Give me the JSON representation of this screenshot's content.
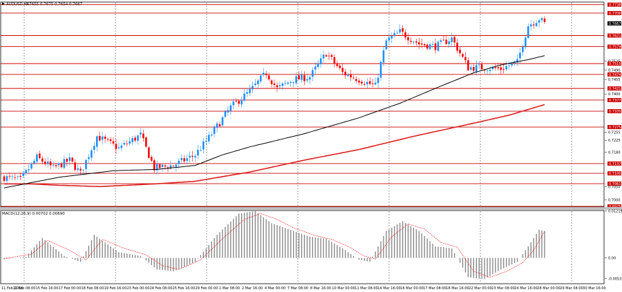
{
  "header": {
    "symbol_line": "AUDUSD,H4",
    "quote_line": "0.7655 0.7675 0.7654 0.7667",
    "symbol_icon": "chart-arrow-icon"
  },
  "colors": {
    "bull": "#1e90ff",
    "bear": "#ff0000",
    "sma_fast": "#000000",
    "sma_slow": "#dc1e1e",
    "hline": "#cc0000",
    "grid": "#555555",
    "macd_hist": "#808080",
    "macd_signal": "#ff0000",
    "current_price_badge": "#000000"
  },
  "chart_data": [
    {
      "type": "candlestick",
      "title": "",
      "ylim": [
        0.6975,
        0.7745
      ],
      "grid": true,
      "price_ticks": [
        "0.7738",
        "0.7706",
        "0.7667",
        "0.7621",
        "0.7579",
        "0.7525",
        "0.7515",
        "0.7490",
        "0.7474",
        "0.7455",
        "0.7421",
        "0.7400",
        "0.7377",
        "0.7335",
        "0.7275",
        "0.7255",
        "0.7225",
        "0.7180",
        "0.7137",
        "0.7100",
        "0.7061",
        "0.7050",
        "0.7000",
        "0.6975"
      ],
      "levels": [
        0.7738,
        0.7706,
        0.7621,
        0.7579,
        0.7515,
        0.7474,
        0.7421,
        0.7377,
        0.7335,
        0.7275,
        0.7137,
        0.71,
        0.7061,
        0.6975
      ],
      "current_price": "0.7667",
      "x_labels": [
        "11 Feb 2016",
        "12 Feb 08:00",
        "15 Feb 16:00",
        "17 Feb 00:00",
        "18 Feb 08:00",
        "19 Feb 16:00",
        "23 Feb 00:00",
        "24 Feb 08:00",
        "25 Feb 16:00",
        "29 Feb 00:00",
        "1 Mar 08:00",
        "2 Mar 16:00",
        "4 Mar 00:00",
        "7 Mar 08:00",
        "8 Mar 16:00",
        "10 Mar 00:00",
        "11 Mar 08:00",
        "14 Mar 16:00",
        "16 Mar 00:00",
        "17 Mar 08:00",
        "18 Mar 16:00",
        "22 Mar 00:00",
        "23 Mar 08:00",
        "24 Mar 16:00",
        "28 Mar 00:00",
        "29 Mar 08:00",
        "30 Mar 16:00"
      ],
      "key_points": [
        [
          0,
          0.7085
        ],
        [
          6,
          0.7075
        ],
        [
          12,
          0.716
        ],
        [
          18,
          0.712
        ],
        [
          24,
          0.715
        ],
        [
          28,
          0.71
        ],
        [
          34,
          0.724
        ],
        [
          42,
          0.7195
        ],
        [
          50,
          0.7245
        ],
        [
          55,
          0.712
        ],
        [
          62,
          0.713
        ],
        [
          70,
          0.717
        ],
        [
          75,
          0.7235
        ],
        [
          83,
          0.735
        ],
        [
          90,
          0.741
        ],
        [
          96,
          0.748
        ],
        [
          100,
          0.742
        ],
        [
          106,
          0.7455
        ],
        [
          112,
          0.7465
        ],
        [
          118,
          0.7555
        ],
        [
          124,
          0.748
        ],
        [
          130,
          0.7455
        ],
        [
          136,
          0.743
        ],
        [
          140,
          0.76
        ],
        [
          145,
          0.7635
        ],
        [
          152,
          0.759
        ],
        [
          158,
          0.758
        ],
        [
          164,
          0.761
        ],
        [
          170,
          0.75
        ],
        [
          176,
          0.75
        ],
        [
          182,
          0.7495
        ],
        [
          188,
          0.752
        ],
        [
          192,
          0.766
        ],
        [
          196,
          0.7685
        ],
        [
          198,
          0.7667
        ]
      ],
      "sma_fast_points": [
        [
          0,
          0.7045
        ],
        [
          20,
          0.7085
        ],
        [
          40,
          0.711
        ],
        [
          56,
          0.7115
        ],
        [
          70,
          0.713
        ],
        [
          80,
          0.717
        ],
        [
          90,
          0.72
        ],
        [
          110,
          0.725
        ],
        [
          130,
          0.731
        ],
        [
          145,
          0.7365
        ],
        [
          160,
          0.743
        ],
        [
          172,
          0.748
        ],
        [
          182,
          0.751
        ],
        [
          192,
          0.753
        ],
        [
          198,
          0.7545
        ]
      ],
      "sma_slow_points": [
        [
          0,
          0.706
        ],
        [
          10,
          0.706
        ],
        [
          20,
          0.7055
        ],
        [
          35,
          0.705
        ],
        [
          55,
          0.706
        ],
        [
          70,
          0.707
        ],
        [
          90,
          0.7105
        ],
        [
          110,
          0.715
        ],
        [
          130,
          0.719
        ],
        [
          150,
          0.724
        ],
        [
          170,
          0.7285
        ],
        [
          185,
          0.732
        ],
        [
          198,
          0.736
        ]
      ]
    },
    {
      "type": "bar",
      "title": "MACD(12,26,9) 0.00702 0.00690",
      "ylim": [
        -0.0065,
        0.0121
      ],
      "y_ticks": [
        "0.01219",
        "0.00",
        "-0.00533"
      ],
      "hist_points": [
        [
          0,
          -0.0003
        ],
        [
          8,
          0.0003
        ],
        [
          14,
          0.0052
        ],
        [
          22,
          0.0005
        ],
        [
          28,
          -0.001
        ],
        [
          33,
          0.006
        ],
        [
          42,
          0.0015
        ],
        [
          50,
          0.0005
        ],
        [
          56,
          -0.003
        ],
        [
          62,
          -0.0035
        ],
        [
          70,
          -0.001
        ],
        [
          78,
          0.006
        ],
        [
          86,
          0.0115
        ],
        [
          92,
          0.0121
        ],
        [
          98,
          0.009
        ],
        [
          104,
          0.0075
        ],
        [
          112,
          0.0055
        ],
        [
          118,
          0.005
        ],
        [
          124,
          0.0025
        ],
        [
          130,
          -0.0005
        ],
        [
          134,
          -0.001
        ],
        [
          140,
          0.007
        ],
        [
          146,
          0.0095
        ],
        [
          152,
          0.007
        ],
        [
          158,
          0.003
        ],
        [
          164,
          0.0025
        ],
        [
          170,
          -0.005
        ],
        [
          176,
          -0.0055
        ],
        [
          182,
          -0.003
        ],
        [
          188,
          -0.001
        ],
        [
          192,
          0.003
        ],
        [
          196,
          0.0073
        ],
        [
          198,
          0.007
        ]
      ],
      "signal_points": [
        [
          0,
          -0.0002
        ],
        [
          10,
          0.001
        ],
        [
          16,
          0.0045
        ],
        [
          24,
          0.002
        ],
        [
          30,
          -0.0005
        ],
        [
          36,
          0.0048
        ],
        [
          44,
          0.0025
        ],
        [
          52,
          0.0008
        ],
        [
          58,
          -0.002
        ],
        [
          64,
          -0.003
        ],
        [
          72,
          -0.0005
        ],
        [
          80,
          0.005
        ],
        [
          88,
          0.01
        ],
        [
          94,
          0.0115
        ],
        [
          100,
          0.01
        ],
        [
          106,
          0.0078
        ],
        [
          114,
          0.0058
        ],
        [
          120,
          0.0048
        ],
        [
          126,
          0.003
        ],
        [
          132,
          0.0005
        ],
        [
          136,
          -0.0003
        ],
        [
          142,
          0.0055
        ],
        [
          148,
          0.0088
        ],
        [
          154,
          0.0075
        ],
        [
          160,
          0.004
        ],
        [
          166,
          0.0028
        ],
        [
          172,
          -0.0035
        ],
        [
          178,
          -0.005
        ],
        [
          184,
          -0.0035
        ],
        [
          190,
          -0.0012
        ],
        [
          194,
          0.002
        ],
        [
          198,
          0.0069
        ]
      ]
    }
  ]
}
